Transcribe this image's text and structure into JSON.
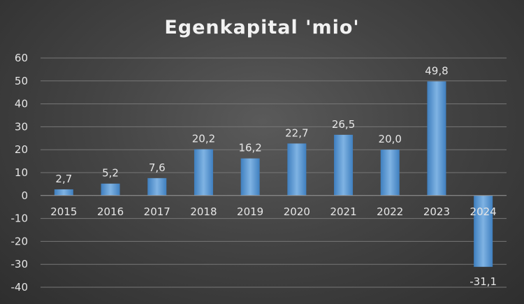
{
  "chart_data": {
    "type": "bar",
    "title": "Egenkapital 'mio'",
    "xlabel": "",
    "ylabel": "",
    "categories": [
      "2015",
      "2016",
      "2017",
      "2018",
      "2019",
      "2020",
      "2021",
      "2022",
      "2023",
      "2024"
    ],
    "values": [
      2.7,
      5.2,
      7.6,
      20.2,
      16.2,
      22.7,
      26.5,
      20.0,
      49.8,
      -31.1
    ],
    "value_labels": [
      "2,7",
      "5,2",
      "7,6",
      "20,2",
      "16,2",
      "22,7",
      "26,5",
      "20,0",
      "49,8",
      "-31,1"
    ],
    "ylim": [
      -40,
      60
    ],
    "yticks": [
      60,
      50,
      40,
      30,
      20,
      10,
      0,
      -10,
      -20,
      -30,
      -40
    ],
    "ytick_labels": [
      "60",
      "50",
      "40",
      "30",
      "20",
      "10",
      "0",
      "-10",
      "-20",
      "-30",
      "-40"
    ],
    "grid": true,
    "legend": "none",
    "bar_color": "#5b9bd5",
    "bar_color_light": "#7fb3e3",
    "bar_color_dark": "#3f7fbf"
  }
}
